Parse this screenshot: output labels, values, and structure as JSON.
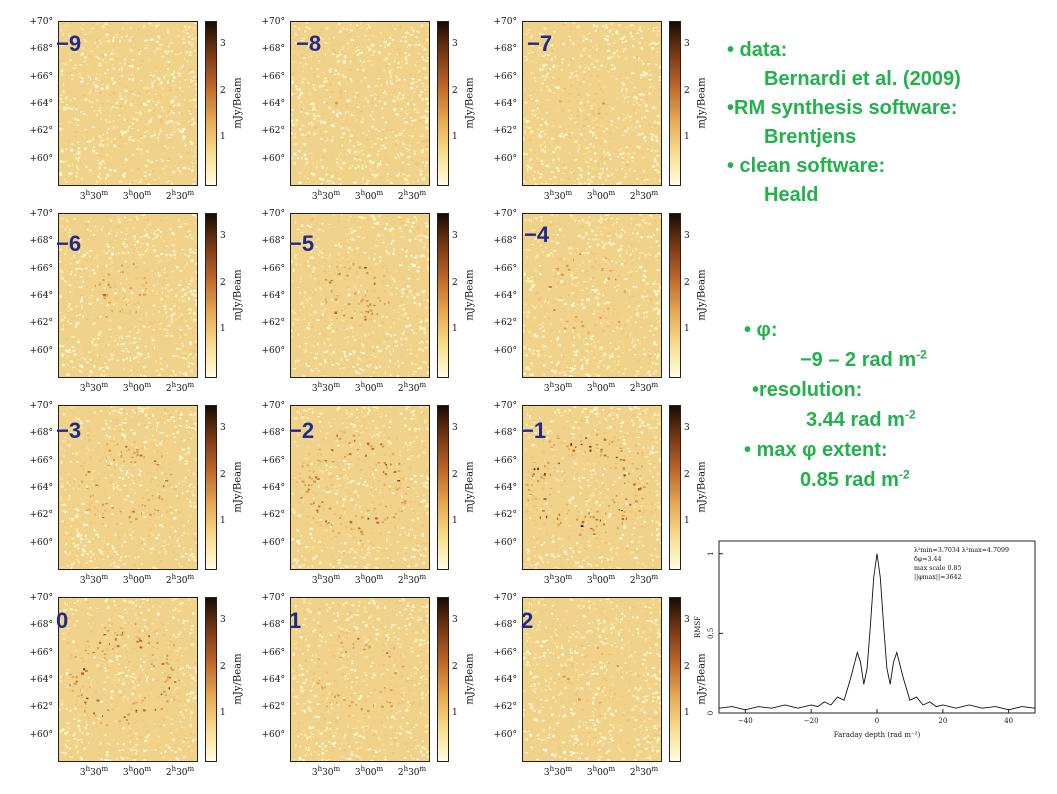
{
  "panels": [
    {
      "label": "−9",
      "phi": -9,
      "ring": 0.15
    },
    {
      "label": "−8",
      "phi": -8,
      "ring": 0.2
    },
    {
      "label": "−7",
      "phi": -7,
      "ring": 0.3
    },
    {
      "label": "−6",
      "phi": -6,
      "ring": 0.45
    },
    {
      "label": "−5",
      "phi": -5,
      "ring": 0.55
    },
    {
      "label": "−4",
      "phi": -4,
      "ring": 0.65
    },
    {
      "label": "−3",
      "phi": -3,
      "ring": 0.75
    },
    {
      "label": "−2",
      "phi": -2,
      "ring": 0.95
    },
    {
      "label": "−1",
      "phi": -1,
      "ring": 1.0
    },
    {
      "label": "0",
      "phi": 0,
      "ring": 0.95
    },
    {
      "label": "1",
      "phi": 1,
      "ring": 0.7
    },
    {
      "label": "2",
      "phi": 2,
      "ring": 0.45
    }
  ],
  "map_axes": {
    "y_ticks": [
      "+70°",
      "+68°",
      "+66°",
      "+64°",
      "+62°",
      "+60°"
    ],
    "x_ticks": [
      {
        "h": "3",
        "m": "30"
      },
      {
        "h": "3",
        "m": "00"
      },
      {
        "h": "2",
        "m": "30"
      }
    ],
    "colorbar_ticks": [
      "3",
      "2",
      "1"
    ],
    "colorbar_unit": "mJy/Beam",
    "colorbar_range": [
      0,
      3.5
    ]
  },
  "notes_top": {
    "data_label": "• data:",
    "data_value": "Bernardi et al. (2009)",
    "rm_label": "•RM synthesis software:",
    "rm_value": "Brentjens",
    "clean_label": "• clean software:",
    "clean_value": "Heald"
  },
  "notes_bottom": {
    "phi_label": "• φ:",
    "phi_value": "−9 – 2 rad m",
    "phi_exp": "-2",
    "res_label": "•resolution:",
    "res_value": "3.44 rad m",
    "res_exp": "-2",
    "ext_label": "• max φ extent:",
    "ext_value": "0.85 rad m",
    "ext_exp": "-2"
  },
  "chart_data": {
    "type": "line",
    "title": "",
    "xlabel": "Faraday depth (rad m⁻²)",
    "ylabel": "RMSF",
    "xlim": [
      -48,
      48
    ],
    "ylim": [
      0,
      1.08
    ],
    "x_ticks": [
      -40,
      -20,
      0,
      20,
      40
    ],
    "y_ticks": [
      0,
      0.5,
      1
    ],
    "annotations": [
      "λ²min=3.7034  λ²max=4.7099",
      "δφ=3.44",
      "max scale 0.85",
      "||φmax||=3642"
    ],
    "series": [
      {
        "x": [
          -48,
          -44,
          -40,
          -36,
          -32,
          -28,
          -24,
          -20,
          -18,
          -16,
          -14,
          -12,
          -10,
          -9,
          -8,
          -7,
          -6,
          -5,
          -4,
          -3,
          -2,
          -1,
          0,
          1,
          2,
          3,
          4,
          5,
          6,
          7,
          8,
          9,
          10,
          12,
          14,
          16,
          18,
          20,
          24,
          28,
          32,
          36,
          40,
          44,
          48
        ],
        "y": [
          0.03,
          0.04,
          0.02,
          0.04,
          0.03,
          0.05,
          0.03,
          0.05,
          0.04,
          0.07,
          0.05,
          0.1,
          0.08,
          0.15,
          0.22,
          0.3,
          0.38,
          0.32,
          0.18,
          0.28,
          0.55,
          0.85,
          1.0,
          0.85,
          0.55,
          0.28,
          0.18,
          0.32,
          0.38,
          0.3,
          0.22,
          0.15,
          0.08,
          0.1,
          0.05,
          0.07,
          0.04,
          0.05,
          0.03,
          0.05,
          0.03,
          0.04,
          0.02,
          0.04,
          0.03
        ]
      }
    ],
    "grid": false,
    "legend": "none"
  }
}
